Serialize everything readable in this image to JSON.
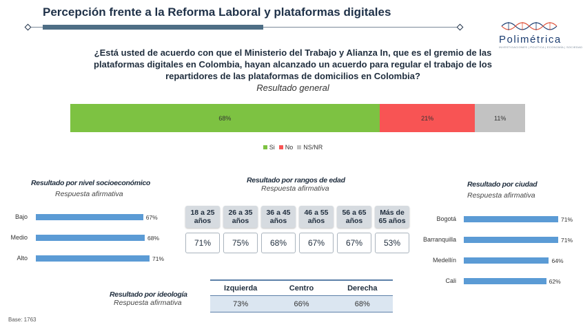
{
  "header": {
    "title": "Percepción frente a la Reforma Laboral y plataformas digitales"
  },
  "logo": {
    "text": "Polimétrica",
    "tagline": "INVESTIGACIONES | POLÍTICA | ECONOMÍA | SOCIEDAD"
  },
  "question": "¿Está usted de acuerdo con que el Ministerio del Trabajo y Alianza In, que es el gremio de las plataformas digitales en Colombia, hayan alcanzado un acuerdo para regular el trabajo de los repartidores de las plataformas de domicilios en Colombia?",
  "subtitle": "Resultado general",
  "base": "Base: 1763",
  "colors": {
    "si": "#7dc242",
    "no": "#f85454",
    "nsnr": "#c2c2c2",
    "bar": "#5b9bd5"
  },
  "chart_data": [
    {
      "type": "bar",
      "orientation": "horizontal-stacked",
      "title": "Resultado general",
      "series": [
        {
          "name": "Si",
          "values": [
            68
          ],
          "label": "68%"
        },
        {
          "name": "No",
          "values": [
            21
          ],
          "label": "21%"
        },
        {
          "name": "NS/NR",
          "values": [
            11
          ],
          "label": "11%"
        }
      ],
      "legend_position": "bottom-center"
    },
    {
      "type": "bar",
      "orientation": "horizontal",
      "title": "Resultado por nivel socioeconómico",
      "subtitle": "Respuesta afirmativa",
      "categories": [
        "Bajo",
        "Medio",
        "Alto"
      ],
      "values": [
        67,
        68,
        71
      ],
      "labels": [
        "67%",
        "68%",
        "71%"
      ]
    },
    {
      "type": "table",
      "title": "Resultado por rangos de edad",
      "subtitle": "Respuesta afirmativa",
      "categories": [
        "18 a 25 años",
        "26 a 35 años",
        "36 a 45 años",
        "46 a 55 años",
        "56 a 65 años",
        "Más de 65 años"
      ],
      "values": [
        71,
        75,
        68,
        67,
        67,
        53
      ],
      "labels": [
        "71%",
        "75%",
        "68%",
        "67%",
        "67%",
        "53%"
      ]
    },
    {
      "type": "bar",
      "orientation": "horizontal",
      "title": "Resultado por ciudad",
      "subtitle": "Respuesta afirmativa",
      "categories": [
        "Bogotá",
        "Barranquilla",
        "Medellín",
        "Cali"
      ],
      "values": [
        71,
        71,
        64,
        62
      ],
      "labels": [
        "71%",
        "71%",
        "64%",
        "62%"
      ]
    },
    {
      "type": "table",
      "title": "Resultado por ideología",
      "subtitle": "Respuesta afirmativa",
      "categories": [
        "Izquierda",
        "Centro",
        "Derecha"
      ],
      "values": [
        73,
        66,
        68
      ],
      "labels": [
        "73%",
        "66%",
        "68%"
      ]
    }
  ]
}
